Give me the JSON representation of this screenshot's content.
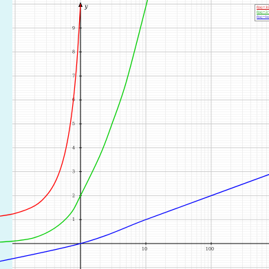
{
  "chart_data": {
    "type": "line",
    "xscale": "log",
    "yscale": "linear",
    "grid": true,
    "legend_position": "top-right",
    "x_axis_letter": "",
    "y_axis_letter": "y",
    "x_tick_labels": [
      "10",
      "100"
    ],
    "y_tick_labels": [
      "1",
      "2",
      "3",
      "4",
      "5",
      "6",
      "7",
      "8",
      "9"
    ],
    "series": [
      {
        "name": "f(x)=10^x",
        "color": "#ff0000",
        "points": [
          [
            0.05,
            1.12
          ],
          [
            0.1,
            1.26
          ],
          [
            0.2,
            1.58
          ],
          [
            0.3,
            2.0
          ],
          [
            0.4,
            2.51
          ],
          [
            0.5,
            3.16
          ],
          [
            0.6,
            3.98
          ],
          [
            0.7,
            5.01
          ],
          [
            0.8,
            6.31
          ],
          [
            0.9,
            7.94
          ],
          [
            1.0,
            10.0
          ]
        ]
      },
      {
        "name": "f(x)=3^x",
        "color": "#00cc00",
        "points": [
          [
            0.05,
            0.05
          ],
          [
            0.1,
            0.11
          ],
          [
            0.2,
            0.25
          ],
          [
            0.4,
            0.64
          ],
          [
            0.7,
            1.24
          ],
          [
            1,
            2
          ],
          [
            2,
            3.7
          ],
          [
            3,
            4.96
          ],
          [
            5,
            6.74
          ],
          [
            10,
            9.9
          ],
          [
            14,
            11.5
          ]
        ]
      },
      {
        "name": "f(x)=log(x)",
        "color": "#0000ff",
        "points": [
          [
            0.02,
            -1.0
          ],
          [
            1,
            0
          ],
          [
            10,
            1
          ],
          [
            100,
            2
          ],
          [
            1000,
            3
          ]
        ]
      }
    ]
  }
}
